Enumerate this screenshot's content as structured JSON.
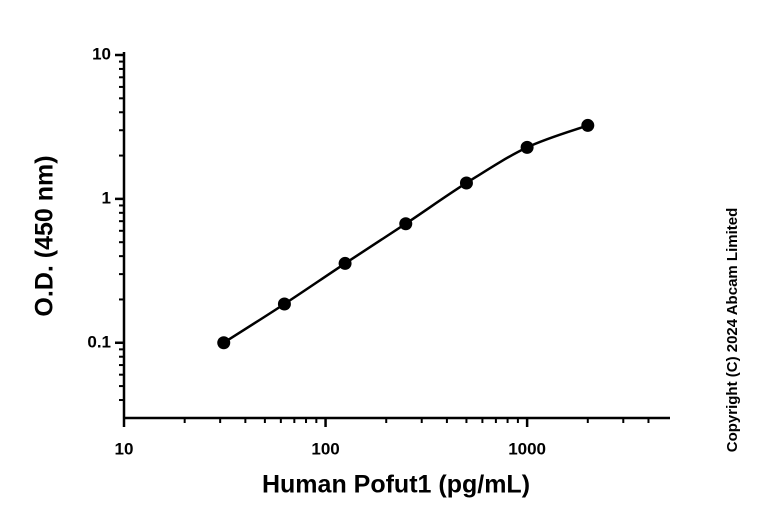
{
  "chart_data": {
    "type": "scatter",
    "x_label": "Human Pofut1 (pg/mL)",
    "y_label": "O.D. (450 nm)",
    "annotation": "Copyright (C) 2024 Abcam Limited",
    "x": [
      31.25,
      62.5,
      125,
      250,
      500,
      1000,
      2000
    ],
    "values": [
      0.1,
      0.186,
      0.356,
      0.672,
      1.29,
      2.28,
      3.24
    ],
    "color": "#000000",
    "fit_line": true,
    "xscale": "log",
    "yscale": "log",
    "xlim": [
      10,
      5000
    ],
    "ylim": [
      0.03,
      10
    ],
    "xticks": [
      10,
      100,
      1000
    ],
    "yticks": [
      0.1,
      1,
      10
    ],
    "xminorticks": [
      20,
      30,
      40,
      50,
      60,
      70,
      80,
      90,
      200,
      300,
      400,
      500,
      600,
      700,
      800,
      900,
      2000,
      3000,
      4000
    ],
    "yminorticks": [
      0.04,
      0.05,
      0.06,
      0.07,
      0.08,
      0.09,
      0.2,
      0.3,
      0.4,
      0.5,
      0.6,
      0.7,
      0.8,
      0.9,
      2,
      3,
      4,
      5,
      6,
      7,
      8,
      9
    ],
    "grid": false
  }
}
